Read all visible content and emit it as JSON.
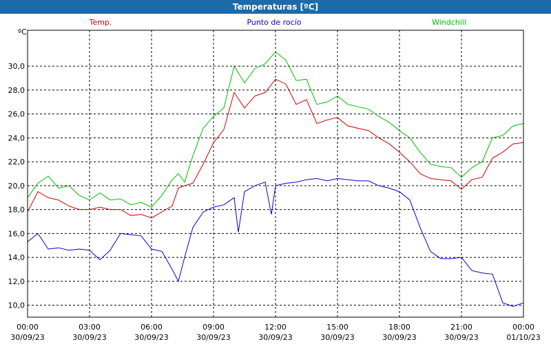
{
  "window": {
    "title": "Temperaturas [ºC]"
  },
  "chart_data": {
    "type": "line",
    "title": "Temperaturas [ºC]",
    "ylabel": "ºC",
    "xlim": [
      0,
      24
    ],
    "ylim": [
      9.0,
      33.0
    ],
    "grid": true,
    "legend_position": "top",
    "y_ticks": [
      "10,0",
      "12,0",
      "14,0",
      "16,0",
      "18,0",
      "20,0",
      "22,0",
      "24,0",
      "26,0",
      "28,0",
      "30,0"
    ],
    "x_ticks": [
      {
        "x": 0,
        "time": "00:00",
        "date": "30/09/23"
      },
      {
        "x": 3,
        "time": "03:00",
        "date": "30/09/23"
      },
      {
        "x": 6,
        "time": "06:00",
        "date": "30/09/23"
      },
      {
        "x": 9,
        "time": "09:00",
        "date": "30/09/23"
      },
      {
        "x": 12,
        "time": "12:00",
        "date": "30/09/23"
      },
      {
        "x": 15,
        "time": "15:00",
        "date": "30/09/23"
      },
      {
        "x": 18,
        "time": "18:00",
        "date": "30/09/23"
      },
      {
        "x": 21,
        "time": "21:00",
        "date": "30/09/23"
      },
      {
        "x": 24,
        "time": "00:00",
        "date": "01/10/23"
      }
    ],
    "series": [
      {
        "name": "Temp.",
        "color": "#cc0000",
        "x": [
          0,
          0.5,
          1,
          1.5,
          2,
          2.5,
          3,
          3.5,
          4,
          4.5,
          5,
          5.5,
          6,
          6.5,
          7,
          7.3,
          7.6,
          8,
          8.5,
          9,
          9.5,
          10,
          10.5,
          11,
          11.5,
          12,
          12.5,
          13,
          13.5,
          14,
          14.5,
          15,
          15.5,
          16,
          16.5,
          17,
          17.5,
          18,
          18.5,
          19,
          19.5,
          20,
          20.5,
          21,
          21.5,
          22,
          22.5,
          23,
          23.5,
          24
        ],
        "values": [
          17.8,
          19.5,
          19.0,
          18.8,
          18.3,
          18.0,
          18.0,
          18.2,
          18.0,
          18.0,
          17.5,
          17.6,
          17.3,
          17.8,
          18.3,
          19.8,
          20.0,
          20.2,
          21.8,
          23.6,
          24.7,
          27.8,
          26.5,
          27.5,
          27.8,
          28.9,
          28.5,
          26.8,
          27.2,
          25.2,
          25.5,
          25.7,
          25.0,
          24.8,
          24.6,
          24.0,
          23.5,
          22.8,
          22.0,
          21.0,
          20.6,
          20.5,
          20.4,
          19.7,
          20.5,
          20.7,
          22.3,
          22.8,
          23.5,
          23.6
        ]
      },
      {
        "name": "Punto de rocío",
        "color": "#0000cc",
        "x": [
          0,
          0.5,
          1,
          1.5,
          2,
          2.5,
          3,
          3.5,
          4,
          4.5,
          5,
          5.5,
          6,
          6.5,
          7,
          7.3,
          7.6,
          8,
          8.5,
          9,
          9.5,
          10,
          10.2,
          10.5,
          11,
          11.5,
          11.8,
          12,
          12.5,
          13,
          13.5,
          14,
          14.5,
          15,
          15.5,
          16,
          16.5,
          17,
          17.5,
          18,
          18.5,
          19,
          19.5,
          20,
          20.5,
          21,
          21.5,
          22,
          22.5,
          23,
          23.5,
          24
        ],
        "values": [
          15.3,
          16.0,
          14.7,
          14.8,
          14.6,
          14.7,
          14.6,
          13.8,
          14.6,
          16.0,
          15.9,
          15.8,
          14.7,
          14.5,
          13.0,
          12.0,
          14.0,
          16.5,
          17.8,
          18.2,
          18.4,
          19.0,
          16.1,
          19.5,
          20.0,
          20.3,
          17.6,
          20.0,
          20.2,
          20.3,
          20.5,
          20.6,
          20.4,
          20.6,
          20.5,
          20.4,
          20.4,
          20.0,
          19.8,
          19.5,
          18.8,
          16.5,
          14.5,
          13.9,
          13.9,
          14.0,
          12.9,
          12.7,
          12.6,
          10.2,
          9.9,
          10.2
        ]
      },
      {
        "name": "Windchill",
        "color": "#00bb00",
        "x": [
          0,
          0.5,
          1,
          1.5,
          2,
          2.5,
          3,
          3.5,
          4,
          4.5,
          5,
          5.5,
          6,
          6.5,
          7,
          7.3,
          7.6,
          8,
          8.5,
          9,
          9.5,
          10,
          10.5,
          11,
          11.5,
          12,
          12.5,
          13,
          13.5,
          14,
          14.5,
          15,
          15.5,
          16,
          16.5,
          17,
          17.5,
          18,
          18.5,
          19,
          19.5,
          20,
          20.5,
          21,
          21.5,
          22,
          22.5,
          23,
          23.5,
          24
        ],
        "values": [
          19.0,
          20.2,
          20.8,
          19.8,
          20.0,
          19.2,
          18.8,
          19.4,
          18.8,
          18.9,
          18.4,
          18.6,
          18.2,
          19.2,
          20.5,
          21.0,
          20.3,
          22.5,
          24.8,
          25.8,
          26.5,
          30.0,
          28.6,
          29.8,
          30.2,
          31.2,
          30.5,
          28.8,
          28.9,
          26.8,
          27.0,
          27.5,
          26.8,
          26.6,
          26.4,
          25.8,
          25.3,
          24.6,
          24.0,
          22.8,
          21.8,
          21.6,
          21.5,
          20.7,
          21.5,
          22.0,
          24.0,
          24.2,
          25.0,
          25.2
        ]
      }
    ]
  }
}
